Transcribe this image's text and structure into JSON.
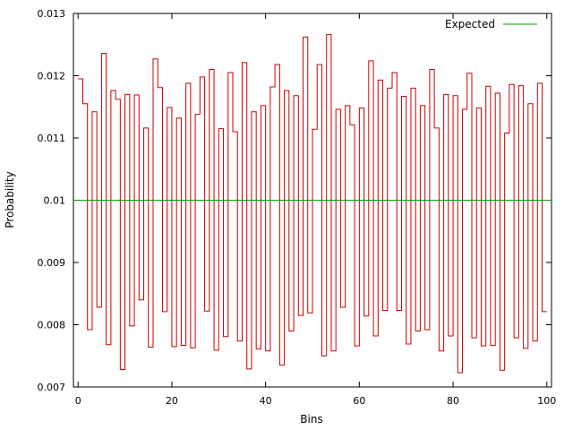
{
  "chart_data": {
    "type": "line",
    "title": "",
    "xlabel": "Bins",
    "ylabel": "Probability",
    "xlim": [
      -1,
      101
    ],
    "ylim": [
      0.007,
      0.013
    ],
    "x_ticks": [
      0,
      20,
      40,
      60,
      80,
      100
    ],
    "x_tick_labels": [
      "0",
      "20",
      "40",
      "60",
      "80",
      "100"
    ],
    "y_ticks": [
      0.007,
      0.008,
      0.009,
      0.01,
      0.011,
      0.012,
      0.013
    ],
    "y_tick_labels": [
      "0.007",
      "0.008",
      "0.009",
      "0.01",
      "0.011",
      "0.012",
      "0.013"
    ],
    "grid": false,
    "legend": {
      "position": "top-right",
      "entries": [
        "Expected"
      ]
    },
    "series": [
      {
        "style": "step",
        "color": "#cc0000",
        "x": [
          0,
          1,
          2,
          3,
          4,
          5,
          6,
          7,
          8,
          9,
          10,
          11,
          12,
          13,
          14,
          15,
          16,
          17,
          18,
          19,
          20,
          21,
          22,
          23,
          24,
          25,
          26,
          27,
          28,
          29,
          30,
          31,
          32,
          33,
          34,
          35,
          36,
          37,
          38,
          39,
          40,
          41,
          42,
          43,
          44,
          45,
          46,
          47,
          48,
          49,
          50,
          51,
          52,
          53,
          54,
          55,
          56,
          57,
          58,
          59,
          60,
          61,
          62,
          63,
          64,
          65,
          66,
          67,
          68,
          69,
          70,
          71,
          72,
          73,
          74,
          75,
          76,
          77,
          78,
          79,
          80,
          81,
          82,
          83,
          84,
          85,
          86,
          87,
          88,
          89,
          90,
          91,
          92,
          93,
          94,
          95,
          96,
          97,
          98,
          99
        ],
        "values": [
          0.01195,
          0.01155,
          0.00792,
          0.01142,
          0.00828,
          0.01236,
          0.00768,
          0.01176,
          0.01162,
          0.00728,
          0.0117,
          0.00798,
          0.01169,
          0.0084,
          0.01116,
          0.00764,
          0.01227,
          0.01181,
          0.00821,
          0.01149,
          0.00765,
          0.01132,
          0.00767,
          0.01188,
          0.00763,
          0.01138,
          0.01198,
          0.00822,
          0.0121,
          0.00759,
          0.01115,
          0.00781,
          0.01205,
          0.0111,
          0.00774,
          0.01221,
          0.00729,
          0.01142,
          0.00761,
          0.01152,
          0.00758,
          0.01182,
          0.01218,
          0.00735,
          0.01176,
          0.0079,
          0.01168,
          0.00815,
          0.01262,
          0.00819,
          0.01114,
          0.01218,
          0.0075,
          0.01266,
          0.00758,
          0.01146,
          0.00828,
          0.01152,
          0.01121,
          0.00766,
          0.01148,
          0.00814,
          0.01224,
          0.00782,
          0.01193,
          0.00823,
          0.0118,
          0.01205,
          0.00823,
          0.01167,
          0.00769,
          0.0118,
          0.0079,
          0.01152,
          0.00792,
          0.0121,
          0.01116,
          0.00758,
          0.0117,
          0.00782,
          0.01168,
          0.00723,
          0.01146,
          0.01204,
          0.00779,
          0.01148,
          0.00766,
          0.01183,
          0.00767,
          0.01172,
          0.00727,
          0.01108,
          0.01186,
          0.00779,
          0.01184,
          0.00762,
          0.01155,
          0.00774,
          0.01188,
          0.00821
        ]
      },
      {
        "name": "Expected",
        "style": "line",
        "color": "#00a000",
        "x": [
          -1,
          101
        ],
        "values": [
          0.01,
          0.01
        ]
      }
    ]
  }
}
